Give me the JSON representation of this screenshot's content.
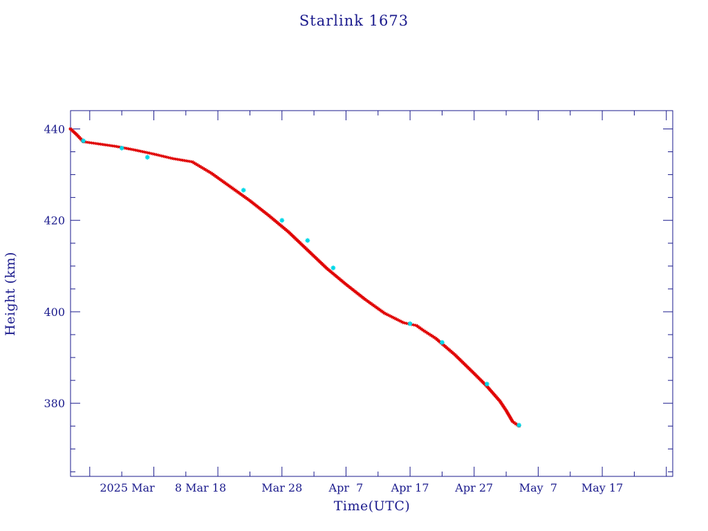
{
  "chart_data": {
    "type": "line",
    "title": "Starlink 1673",
    "xlabel": "Time(UTC)",
    "ylabel": "Height (km)",
    "x_range": [
      "2025-02-23",
      "2025-05-28"
    ],
    "ylim": [
      364,
      444
    ],
    "y_ticks": [
      380,
      400,
      420,
      440
    ],
    "x_ticks": [
      {
        "date": "2025-03-01",
        "label": "2025 Mar"
      },
      {
        "date": "2025-03-08",
        "label": "8 Mar 18"
      },
      {
        "date": "2025-03-28",
        "label": "Mar 28"
      },
      {
        "date": "2025-04-07",
        "label": "Apr  7"
      },
      {
        "date": "2025-04-17",
        "label": "Apr 17"
      },
      {
        "date": "2025-04-27",
        "label": "Apr 27"
      },
      {
        "date": "2025-05-07",
        "label": "May  7"
      },
      {
        "date": "2025-05-17",
        "label": "May 17"
      }
    ],
    "grid": false,
    "colors": {
      "frame": "#1a1a8c",
      "line": "#000000",
      "marker": "#e00000",
      "highlight": "#00d8e8"
    },
    "series": [
      {
        "x": [
          "2025-02-23",
          "2025-02-24",
          "2025-02-25",
          "2025-02-27",
          "2025-03-02",
          "2025-03-05",
          "2025-03-08",
          "2025-03-11",
          "2025-03-14",
          "2025-03-17",
          "2025-03-20",
          "2025-03-23",
          "2025-03-26",
          "2025-03-29",
          "2025-04-01",
          "2025-04-04",
          "2025-04-07",
          "2025-04-10",
          "2025-04-13",
          "2025-04-16",
          "2025-04-18",
          "2025-04-19",
          "2025-04-21",
          "2025-04-24",
          "2025-04-27",
          "2025-04-29",
          "2025-05-01",
          "2025-05-02",
          "2025-05-03",
          "2025-05-04"
        ],
        "y": [
          440,
          438.7,
          437.2,
          436.8,
          436.2,
          435.4,
          434.5,
          433.5,
          432.8,
          430.3,
          427.3,
          424.3,
          421.0,
          417.5,
          413.5,
          409.5,
          406.0,
          402.7,
          399.7,
          397.6,
          397.0,
          396.0,
          394.2,
          390.6,
          386.5,
          383.7,
          380.5,
          378.4,
          376.0,
          375.0
        ]
      }
    ],
    "highlight_points": [
      {
        "x": "2025-02-25",
        "y": 437.4
      },
      {
        "x": "2025-03-03",
        "y": 435.8
      },
      {
        "x": "2025-03-07",
        "y": 433.8
      },
      {
        "x": "2025-03-22",
        "y": 426.6
      },
      {
        "x": "2025-03-28",
        "y": 420.0
      },
      {
        "x": "2025-04-01",
        "y": 415.6
      },
      {
        "x": "2025-04-05",
        "y": 409.6
      },
      {
        "x": "2025-04-17",
        "y": 397.4
      },
      {
        "x": "2025-04-22",
        "y": 393.3
      },
      {
        "x": "2025-04-29",
        "y": 384.2
      },
      {
        "x": "2025-05-04",
        "y": 375.2
      }
    ]
  }
}
